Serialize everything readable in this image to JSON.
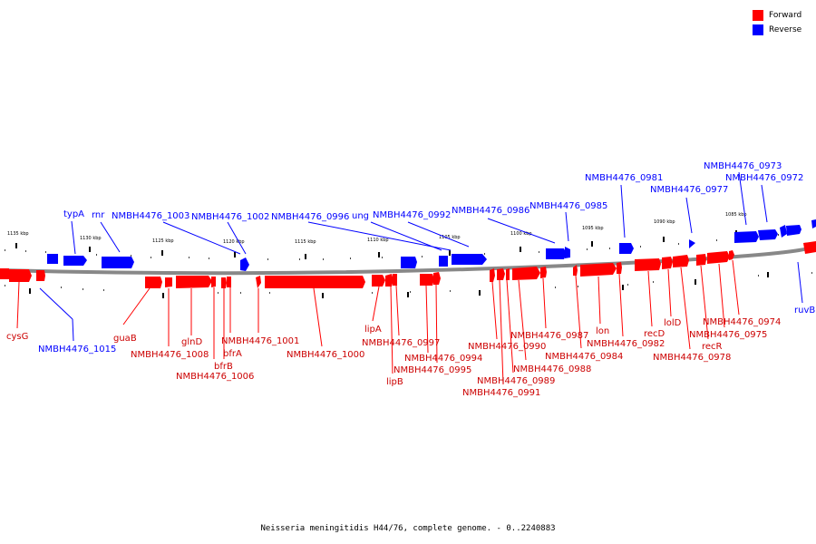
{
  "legend": {
    "forward_label": "Forward",
    "reverse_label": "Reverse",
    "forward_color": "#ff0000",
    "reverse_color": "#0000ff"
  },
  "caption": "Neisseria meningitidis H44/76, complete genome. - 0..2240883",
  "scale": {
    "ticks": [
      "1135 kbp",
      "1130 kbp",
      "1125 kbp",
      "1120 kbp",
      "1115 kbp",
      "1110 kbp",
      "1105 kbp",
      "1100 kbp",
      "1095 kbp",
      "1090 kbp",
      "1085 kbp"
    ]
  },
  "genes": {
    "reverse": [
      "typA",
      "rnr",
      "NMBH4476_1003",
      "NMBH4476_1002",
      "NMBH4476_0996",
      "ung",
      "NMBH4476_0992",
      "NMBH4476_0986",
      "NMBH4476_0985",
      "NMBH4476_0981",
      "NMBH4476_0977",
      "NMBH4476_0973",
      "NMBH4476_0972",
      "NMBH4476_1015",
      "ruvB"
    ],
    "forward": [
      "cysG",
      "guaB",
      "NMBH4476_1008",
      "glnD",
      "bfrB",
      "bfrA",
      "NMBH4476_1006",
      "NMBH4476_1001",
      "NMBH4476_1000",
      "lipA",
      "lipB",
      "NMBH4476_0997",
      "NMBH4476_0995",
      "NMBH4476_0994",
      "NMBH4476_0990",
      "NMBH4476_0991",
      "NMBH4476_0989",
      "NMBH4476_0988",
      "NMBH4476_0987",
      "NMBH4476_0984",
      "lon",
      "NMBH4476_0982",
      "recD",
      "lolD",
      "NMBH4476_0978",
      "recR",
      "NMBH4476_0975",
      "NMBH4476_0974"
    ]
  }
}
